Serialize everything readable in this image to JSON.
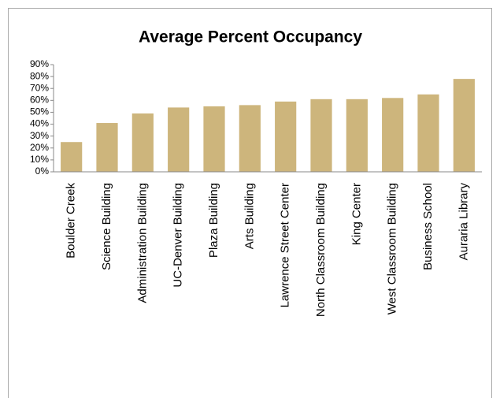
{
  "chart_data": {
    "type": "bar",
    "title": "Average Percent Occupancy",
    "categories": [
      "Boulder Creek",
      "Science Building",
      "Administration Building",
      "UC-Denver Building",
      "Plaza Building",
      "Arts Building",
      "Lawrence Street Center",
      "North Classroom Building",
      "King Center",
      "West Classroom Building",
      "Business School",
      "Auraria Library"
    ],
    "values": [
      25,
      41,
      49,
      54,
      55,
      56,
      59,
      61,
      61,
      62,
      65,
      78
    ],
    "color": "#cdb57c",
    "ylim": [
      0,
      90
    ],
    "yticks": [
      {
        "value": 0,
        "label": "0%"
      },
      {
        "value": 10,
        "label": "10%"
      },
      {
        "value": 20,
        "label": "20%"
      },
      {
        "value": 30,
        "label": "30%"
      },
      {
        "value": 40,
        "label": "40%"
      },
      {
        "value": 50,
        "label": "50%"
      },
      {
        "value": 60,
        "label": "60%"
      },
      {
        "value": 70,
        "label": "70%"
      },
      {
        "value": 80,
        "label": "80%"
      },
      {
        "value": 90,
        "label": "90%"
      }
    ],
    "grid": false
  }
}
